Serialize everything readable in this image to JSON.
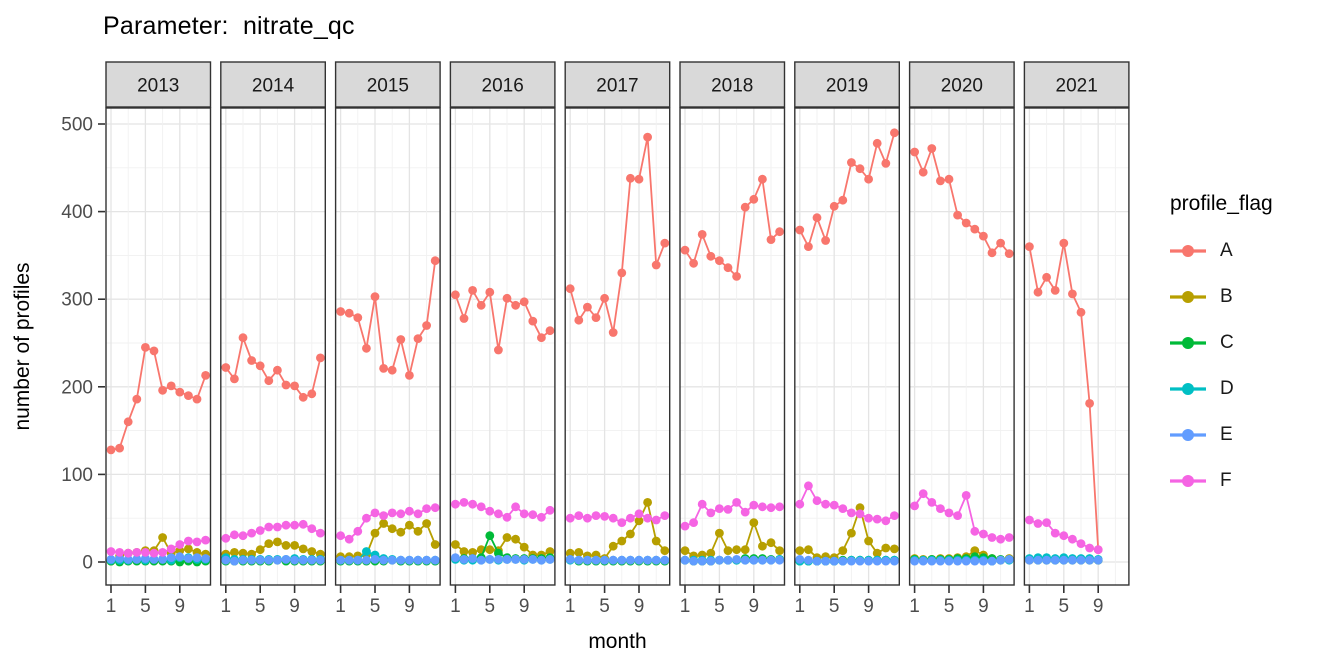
{
  "chart_data": {
    "type": "line",
    "title": "Parameter:  nitrate_qc",
    "xlabel": "month",
    "ylabel": "number of profiles",
    "facet_variable": "year",
    "facets": [
      "2013",
      "2014",
      "2015",
      "2016",
      "2017",
      "2018",
      "2019",
      "2020",
      "2021"
    ],
    "x_ticks": [
      1,
      5,
      9
    ],
    "ylim": [
      0,
      500
    ],
    "y_ticks": [
      0,
      100,
      200,
      300,
      400,
      500
    ],
    "grid": true,
    "legend": {
      "title": "profile_flag",
      "position": "right"
    },
    "style": {
      "figure_background": "#FFFFFF",
      "panel_background": "#FFFFFF",
      "strip_fill": "#D9D9D9",
      "border": "#333333",
      "grid_major": "#E4E4E4",
      "grid_minor": "#F1F1F1",
      "tick_color": "#333333",
      "tick_label_color": "#4D4D4D",
      "text_color": "#000000"
    },
    "series": [
      {
        "name": "A",
        "color": "#F8766D",
        "values_by_facet": {
          "2013": [
            128,
            130,
            160,
            186,
            245,
            241,
            196,
            201,
            194,
            190,
            186,
            213
          ],
          "2014": [
            222,
            209,
            256,
            230,
            224,
            207,
            219,
            202,
            201,
            188,
            192,
            233
          ],
          "2015": [
            286,
            284,
            279,
            244,
            303,
            221,
            219,
            254,
            213,
            255,
            270,
            344
          ],
          "2016": [
            305,
            278,
            310,
            293,
            308,
            242,
            301,
            293,
            297,
            275,
            256,
            264
          ],
          "2017": [
            312,
            276,
            291,
            279,
            301,
            262,
            330,
            438,
            437,
            485,
            339,
            364
          ],
          "2018": [
            356,
            341,
            374,
            349,
            344,
            336,
            326,
            405,
            414,
            437,
            368,
            377
          ],
          "2019": [
            379,
            360,
            393,
            367,
            406,
            413,
            456,
            449,
            437,
            478,
            455,
            490
          ],
          "2020": [
            468,
            445,
            472,
            435,
            437,
            396,
            387,
            380,
            372,
            353,
            364,
            352
          ],
          "2021": [
            360,
            308,
            325,
            310,
            364,
            306,
            285,
            181,
            14
          ]
        }
      },
      {
        "name": "B",
        "color": "#B79F00",
        "values_by_facet": {
          "2013": [
            1,
            7,
            10,
            11,
            13,
            13,
            28,
            10,
            13,
            15,
            11,
            9
          ],
          "2014": [
            9,
            11,
            10,
            9,
            14,
            21,
            23,
            19,
            19,
            15,
            12,
            9
          ],
          "2015": [
            6,
            6,
            7,
            8,
            33,
            44,
            38,
            34,
            42,
            35,
            44,
            20
          ],
          "2016": [
            20,
            12,
            11,
            14,
            14,
            13,
            28,
            26,
            17,
            8,
            8,
            12
          ],
          "2017": [
            10,
            11,
            7,
            8,
            4,
            18,
            24,
            32,
            47,
            68,
            24,
            13
          ],
          "2018": [
            13,
            7,
            8,
            10,
            33,
            13,
            14,
            14,
            45,
            18,
            22,
            13
          ],
          "2019": [
            13,
            14,
            5,
            6,
            5,
            13,
            33,
            62,
            24,
            10,
            16,
            15
          ],
          "2020": [
            4,
            3,
            3,
            4,
            4,
            5,
            6,
            13,
            8,
            4,
            2,
            4
          ],
          "2021": [
            2,
            3,
            3,
            3,
            4,
            3,
            3,
            3,
            2
          ]
        }
      },
      {
        "name": "C",
        "color": "#00BA38",
        "values_by_facet": {
          "2013": [
            1,
            0,
            1,
            1,
            1,
            1,
            1,
            1,
            0,
            1,
            0,
            1
          ],
          "2014": [
            1,
            1,
            1,
            1,
            1,
            1,
            2,
            1,
            1,
            1,
            1,
            1
          ],
          "2015": [
            1,
            1,
            1,
            1,
            1,
            1,
            2,
            1,
            1,
            1,
            1,
            1
          ],
          "2016": [
            4,
            4,
            4,
            5,
            30,
            10,
            5,
            4,
            4,
            4,
            4,
            5
          ],
          "2017": [
            3,
            1,
            1,
            1,
            1,
            1,
            1,
            1,
            1,
            1,
            1,
            1
          ],
          "2018": [
            2,
            1,
            1,
            1,
            2,
            2,
            2,
            4,
            4,
            4,
            3,
            3
          ],
          "2019": [
            1,
            1,
            1,
            1,
            1,
            2,
            2,
            2,
            2,
            2,
            2,
            2
          ],
          "2020": [
            3,
            2,
            3,
            3,
            3,
            4,
            4,
            6,
            5,
            4,
            3,
            3
          ],
          "2021": [
            3,
            2,
            2,
            2,
            2,
            2,
            2,
            2,
            2
          ]
        }
      },
      {
        "name": "D",
        "color": "#00BFC4",
        "values_by_facet": {
          "2013": [
            2,
            2,
            2,
            3,
            2,
            3,
            3,
            2,
            5,
            5,
            3,
            3
          ],
          "2014": [
            5,
            3,
            3,
            3,
            3,
            3,
            3,
            3,
            4,
            3,
            3,
            3
          ],
          "2015": [
            2,
            2,
            2,
            12,
            8,
            4,
            3,
            2,
            2,
            2,
            2,
            2
          ],
          "2016": [
            3,
            2,
            2,
            2,
            3,
            2,
            3,
            3,
            2,
            3,
            2,
            3
          ],
          "2017": [
            2,
            2,
            2,
            2,
            2,
            2,
            2,
            2,
            2,
            2,
            2,
            2
          ],
          "2018": [
            2,
            2,
            2,
            2,
            2,
            2,
            2,
            2,
            2,
            2,
            2,
            3
          ],
          "2019": [
            1,
            1,
            1,
            1,
            1,
            1,
            2,
            2,
            2,
            2,
            2,
            2
          ],
          "2020": [
            2,
            2,
            2,
            2,
            2,
            2,
            2,
            2,
            2,
            1,
            2,
            2
          ],
          "2021": [
            4,
            5,
            5,
            4,
            5,
            4,
            4,
            4,
            3
          ]
        }
      },
      {
        "name": "E",
        "color": "#619CFF",
        "values_by_facet": {
          "2013": [
            3,
            4,
            3,
            3,
            4,
            3,
            3,
            5,
            6,
            4,
            5,
            4
          ],
          "2014": [
            2,
            1,
            2,
            2,
            2,
            2,
            2,
            3,
            2,
            2,
            2,
            2
          ],
          "2015": [
            2,
            2,
            2,
            2,
            3,
            2,
            2,
            2,
            2,
            2,
            2,
            2
          ],
          "2016": [
            5,
            3,
            4,
            2,
            3,
            3,
            3,
            3,
            3,
            3,
            2,
            3
          ],
          "2017": [
            3,
            2,
            2,
            2,
            2,
            2,
            2,
            2,
            2,
            2,
            2,
            2
          ],
          "2018": [
            2,
            1,
            1,
            1,
            2,
            2,
            3,
            2,
            2,
            2,
            2,
            2
          ],
          "2019": [
            3,
            2,
            1,
            1,
            1,
            1,
            1,
            1,
            1,
            1,
            1,
            1
          ],
          "2020": [
            1,
            1,
            1,
            1,
            1,
            1,
            1,
            1,
            1,
            1,
            2,
            3
          ],
          "2021": [
            2,
            2,
            2,
            2,
            2,
            2,
            2,
            2,
            2
          ]
        }
      },
      {
        "name": "F",
        "color": "#F564E3",
        "values_by_facet": {
          "2013": [
            12,
            11,
            10,
            11,
            11,
            10,
            11,
            15,
            20,
            24,
            23,
            25
          ],
          "2014": [
            27,
            31,
            30,
            33,
            36,
            40,
            40,
            42,
            42,
            43,
            38,
            33
          ],
          "2015": [
            30,
            26,
            35,
            50,
            56,
            53,
            56,
            55,
            58,
            55,
            61,
            62
          ],
          "2016": [
            66,
            68,
            66,
            63,
            58,
            55,
            51,
            63,
            55,
            54,
            51,
            59
          ],
          "2017": [
            50,
            53,
            50,
            53,
            52,
            50,
            45,
            50,
            55,
            50,
            48,
            53
          ],
          "2018": [
            41,
            45,
            66,
            56,
            61,
            60,
            68,
            57,
            65,
            63,
            62,
            63
          ],
          "2019": [
            66,
            87,
            70,
            66,
            65,
            61,
            56,
            55,
            50,
            49,
            47,
            53
          ],
          "2020": [
            64,
            78,
            68,
            61,
            56,
            53,
            76,
            35,
            32,
            28,
            26,
            28
          ],
          "2021": [
            48,
            44,
            45,
            33,
            30,
            26,
            21,
            16,
            14
          ]
        }
      }
    ]
  }
}
